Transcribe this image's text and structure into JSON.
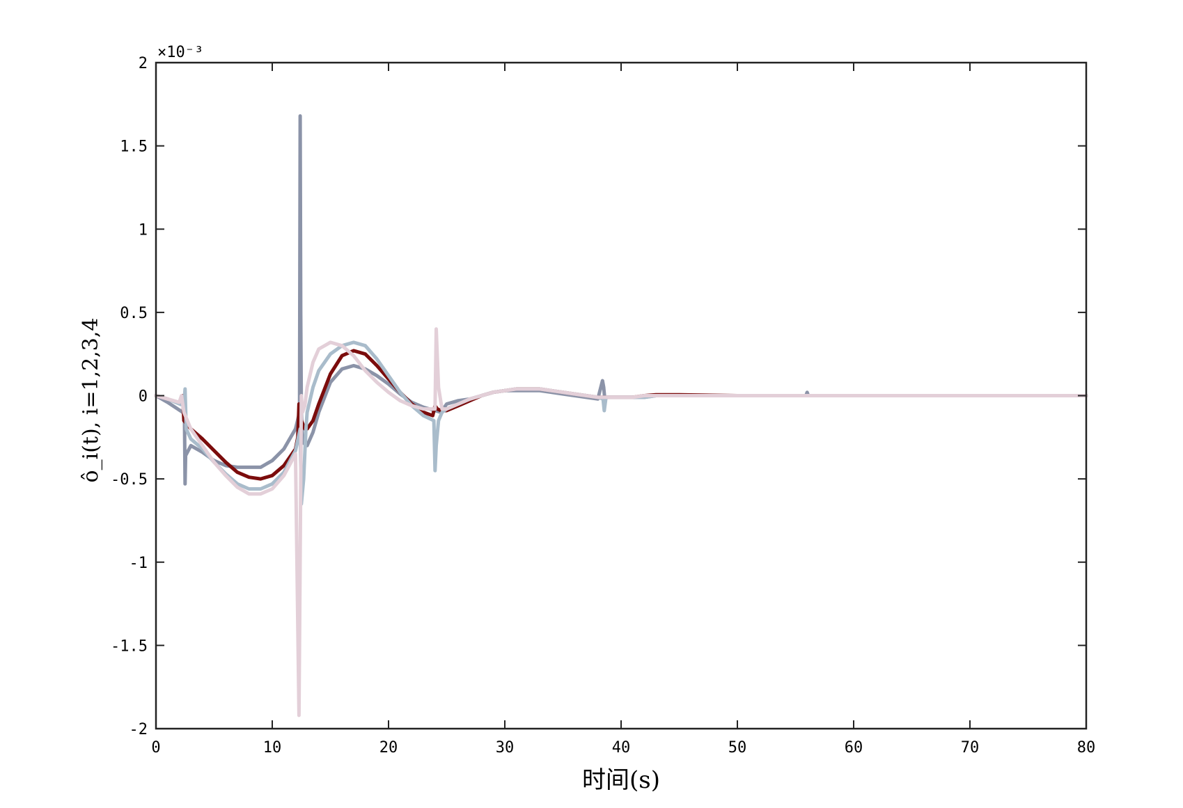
{
  "chart_data": {
    "type": "line",
    "title": "",
    "xlabel": "时间(s)",
    "ylabel": "ô_i(t), i=1,2,3,4",
    "y_exponent_label": "×10⁻³",
    "xlim": [
      0,
      80
    ],
    "ylim": [
      -2,
      2
    ],
    "x_ticks": [
      0,
      10,
      20,
      30,
      40,
      50,
      60,
      70,
      80
    ],
    "y_ticks": [
      -2,
      -1.5,
      -1,
      -0.5,
      0,
      0.5,
      1,
      1.5,
      2
    ],
    "x_tick_labels": [
      "0",
      "10",
      "20",
      "30",
      "40",
      "50",
      "60",
      "70",
      "80"
    ],
    "y_tick_labels": [
      "-2",
      "-1.5",
      "-1",
      "-0.5",
      "0",
      "0.5",
      "1",
      "1.5",
      "2"
    ],
    "grid": false,
    "legend": "none",
    "series": [
      {
        "color": "#8b93a8",
        "x": [
          0,
          1,
          2.3,
          2.45,
          2.5,
          2.55,
          3,
          4,
          5,
          6,
          7,
          8,
          9,
          10,
          11,
          12,
          12.35,
          12.4,
          12.45,
          12.5,
          12.6,
          13,
          13.5,
          14,
          15,
          16,
          17,
          18,
          19,
          20,
          21,
          22,
          23,
          24,
          24.5,
          25,
          26,
          27,
          28,
          29,
          30,
          31,
          32,
          33,
          34,
          35,
          36,
          37,
          38,
          38.4,
          38.5,
          38.6,
          38.8,
          39,
          40,
          41,
          42,
          43,
          45,
          50,
          55,
          55.9,
          56,
          56.1,
          60,
          65,
          70,
          75,
          80
        ],
        "y": [
          0,
          -0.04,
          -0.1,
          -0.11,
          -0.53,
          -0.36,
          -0.3,
          -0.34,
          -0.39,
          -0.42,
          -0.43,
          -0.43,
          -0.43,
          -0.39,
          -0.32,
          -0.2,
          -0.1,
          1.68,
          0.5,
          -0.1,
          -0.28,
          -0.3,
          -0.22,
          -0.1,
          0.08,
          0.16,
          0.18,
          0.16,
          0.12,
          0.07,
          0.01,
          -0.04,
          -0.07,
          -0.09,
          -0.1,
          -0.05,
          -0.03,
          -0.02,
          0.0,
          0.02,
          0.03,
          0.03,
          0.03,
          0.03,
          0.02,
          0.01,
          0.0,
          -0.01,
          -0.02,
          0.09,
          0.05,
          -0.02,
          -0.01,
          -0.01,
          -0.01,
          -0.01,
          -0.01,
          0.0,
          0.0,
          0.0,
          0.0,
          0.0,
          0.02,
          0.0,
          0.0,
          0.0,
          0.0,
          0.0,
          0.0
        ]
      },
      {
        "color": "#7b0c0c",
        "x": [
          0,
          1,
          2.2,
          2.3,
          2.4,
          3,
          4,
          5,
          6,
          7,
          8,
          9,
          10,
          11,
          12,
          12.2,
          12.3,
          12.5,
          12.8,
          13,
          13.5,
          14,
          15,
          16,
          17,
          18,
          19,
          20,
          21,
          22,
          23,
          23.8,
          24,
          24.2,
          24.5,
          25,
          26,
          27,
          28,
          29,
          30,
          31,
          32,
          33,
          34,
          35,
          36,
          37,
          38,
          38.5,
          39,
          40,
          41,
          42,
          43,
          44,
          45,
          50,
          55,
          60,
          65,
          70,
          75,
          80
        ],
        "y": [
          0,
          -0.02,
          -0.05,
          0.0,
          -0.15,
          -0.2,
          -0.26,
          -0.33,
          -0.4,
          -0.46,
          -0.49,
          -0.5,
          -0.48,
          -0.42,
          -0.32,
          -0.25,
          -0.05,
          -0.15,
          -0.2,
          -0.2,
          -0.15,
          -0.05,
          0.13,
          0.24,
          0.27,
          0.25,
          0.18,
          0.1,
          0.02,
          -0.05,
          -0.1,
          -0.12,
          -0.06,
          -0.08,
          -0.09,
          -0.09,
          -0.06,
          -0.03,
          0.0,
          0.02,
          0.03,
          0.04,
          0.04,
          0.04,
          0.03,
          0.02,
          0.01,
          0.0,
          -0.01,
          -0.01,
          -0.01,
          -0.01,
          -0.01,
          0.0,
          0.005,
          0.005,
          0.005,
          0.0,
          0.0,
          0.0,
          0.0,
          0.0,
          0.0,
          0.0
        ]
      },
      {
        "color": "#a9bccb",
        "x": [
          0,
          1,
          2.4,
          2.5,
          2.6,
          3,
          4,
          5,
          6,
          7,
          8,
          9,
          10,
          11,
          12,
          12.4,
          12.5,
          12.7,
          12.9,
          13,
          13.5,
          14,
          15,
          16,
          17,
          18,
          19,
          20,
          21,
          22,
          23,
          23.9,
          24,
          24.1,
          24.3,
          24.6,
          25,
          26,
          27,
          28,
          29,
          30,
          31,
          32,
          33,
          34,
          35,
          36,
          37,
          38,
          38.45,
          38.55,
          38.7,
          39,
          40,
          41,
          42,
          43,
          45,
          50,
          55,
          60,
          65,
          70,
          75,
          80
        ],
        "y": [
          0,
          -0.02,
          -0.06,
          0.04,
          -0.2,
          -0.26,
          -0.32,
          -0.4,
          -0.47,
          -0.53,
          -0.56,
          -0.56,
          -0.53,
          -0.46,
          -0.33,
          -0.2,
          -0.65,
          -0.5,
          -0.2,
          -0.1,
          0.05,
          0.15,
          0.25,
          0.3,
          0.32,
          0.3,
          0.22,
          0.12,
          0.02,
          -0.06,
          -0.12,
          -0.15,
          -0.45,
          -0.3,
          -0.15,
          -0.1,
          -0.08,
          -0.05,
          -0.02,
          0.0,
          0.02,
          0.03,
          0.04,
          0.04,
          0.04,
          0.03,
          0.02,
          0.01,
          0.0,
          -0.01,
          -0.02,
          -0.09,
          -0.01,
          -0.01,
          -0.01,
          -0.01,
          -0.01,
          0.0,
          0.0,
          0.0,
          0.0,
          0.0,
          0.0,
          0.0,
          0.0,
          0.0
        ]
      },
      {
        "color": "#e3cfd8",
        "x": [
          0,
          1,
          2,
          2.2,
          2.4,
          3,
          4,
          5,
          6,
          7,
          8,
          9,
          10,
          11,
          12,
          12.3,
          12.5,
          12.6,
          12.8,
          13,
          13.5,
          14,
          15,
          16,
          17,
          18,
          19,
          20,
          21,
          22,
          23,
          24,
          24.1,
          24.3,
          24.6,
          25,
          26,
          27,
          28,
          29,
          30,
          31,
          32,
          33,
          34,
          35,
          36,
          37,
          38,
          38.5,
          39,
          40,
          41,
          42,
          43,
          45,
          50,
          55,
          60,
          65,
          70,
          75,
          80
        ],
        "y": [
          0,
          -0.02,
          -0.04,
          0.0,
          -0.1,
          -0.2,
          -0.3,
          -0.4,
          -0.48,
          -0.55,
          -0.59,
          -0.59,
          -0.56,
          -0.48,
          -0.35,
          -1.92,
          0.0,
          -0.1,
          -0.06,
          0.05,
          0.2,
          0.28,
          0.32,
          0.3,
          0.24,
          0.15,
          0.08,
          0.02,
          -0.03,
          -0.06,
          -0.08,
          -0.08,
          0.4,
          0.05,
          -0.08,
          -0.08,
          -0.05,
          -0.02,
          0.0,
          0.02,
          0.03,
          0.04,
          0.04,
          0.04,
          0.03,
          0.02,
          0.01,
          0.0,
          -0.01,
          -0.01,
          -0.01,
          -0.01,
          -0.01,
          0.0,
          0.0,
          0.0,
          0.0,
          0.0,
          0.0,
          0.0,
          0.0,
          0.0,
          0.0
        ]
      }
    ]
  }
}
